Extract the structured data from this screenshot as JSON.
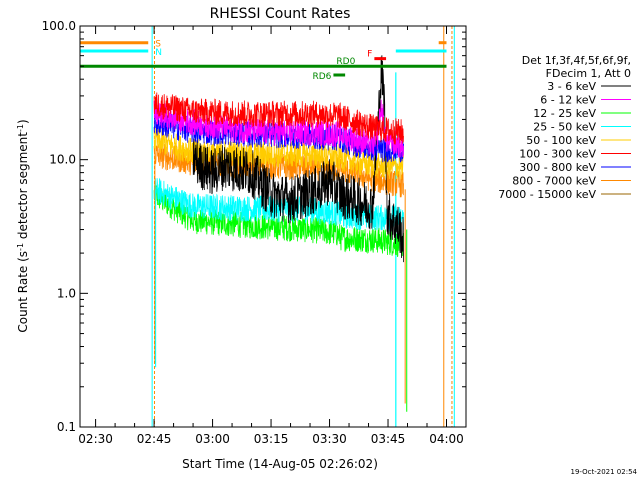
{
  "chart_data": {
    "type": "line",
    "title": "RHESSI Count Rates",
    "xlabel": "Start Time (14-Aug-05 02:26:02)",
    "ylabel_main": "Count Rate (s",
    "ylabel_sup1": "-1",
    "ylabel_mid": " detector segment",
    "ylabel_sup2": "-1",
    "ylabel_end": ")",
    "y_scale": "log",
    "ylim": [
      0.1,
      100
    ],
    "xlim_minutes": [
      -4,
      95
    ],
    "x_ticks": [
      {
        "label": "02:30",
        "minutes": 0
      },
      {
        "label": "02:45",
        "minutes": 15
      },
      {
        "label": "03:00",
        "minutes": 30
      },
      {
        "label": "03:15",
        "minutes": 45
      },
      {
        "label": "03:30",
        "minutes": 60
      },
      {
        "label": "03:45",
        "minutes": 75
      },
      {
        "label": "04:00",
        "minutes": 90
      }
    ],
    "y_ticks": [
      {
        "label": "100.0",
        "value": 100
      },
      {
        "label": "10.0",
        "value": 10
      },
      {
        "label": "1.0",
        "value": 1
      },
      {
        "label": "0.1",
        "value": 0.1
      }
    ],
    "legend": {
      "header1": "Det 1f,3f,4f,5f,6f,9f,",
      "header2": "FDecim 1, Att 0",
      "position": "right"
    },
    "series": [
      {
        "name": "3 - 6 keV",
        "color": "#000000",
        "start": 25,
        "knots": [
          [
            15,
            17
          ],
          [
            22,
            13
          ],
          [
            27,
            9
          ],
          [
            30,
            8
          ],
          [
            33,
            9
          ],
          [
            40,
            8
          ],
          [
            45,
            5.5
          ],
          [
            50,
            5
          ],
          [
            57,
            6
          ],
          [
            60,
            7
          ],
          [
            63,
            5.5
          ],
          [
            68,
            4.8
          ],
          [
            71,
            4.5
          ],
          [
            72.5,
            20
          ],
          [
            73.3,
            45
          ],
          [
            74,
            30
          ],
          [
            74.8,
            4
          ],
          [
            78,
            3
          ],
          [
            79,
            2.4
          ]
        ]
      },
      {
        "name": "6 - 12 keV",
        "color": "#ff00ff",
        "start": 15,
        "knots": [
          [
            15,
            22
          ],
          [
            25,
            19
          ],
          [
            35,
            17
          ],
          [
            45,
            16
          ],
          [
            55,
            16
          ],
          [
            63,
            15.5
          ],
          [
            67,
            14
          ],
          [
            72,
            13
          ],
          [
            73.3,
            25
          ],
          [
            74.5,
            14
          ],
          [
            79,
            12.5
          ]
        ]
      },
      {
        "name": "12 - 25 keV",
        "color": "#00ff00",
        "start": 15,
        "knots": [
          [
            15,
            5.5
          ],
          [
            25,
            3.5
          ],
          [
            40,
            3.2
          ],
          [
            55,
            3
          ],
          [
            62,
            2.8
          ],
          [
            63,
            2.6
          ],
          [
            72,
            2.5
          ],
          [
            79,
            2.3
          ]
        ]
      },
      {
        "name": "25 - 50 keV",
        "color": "#00ffff",
        "start": 15,
        "knots": [
          [
            15,
            6
          ],
          [
            25,
            4.5
          ],
          [
            40,
            4.3
          ],
          [
            55,
            4.2
          ],
          [
            62,
            4
          ],
          [
            63,
            3.8
          ],
          [
            72,
            3.7
          ],
          [
            79,
            3.6
          ]
        ]
      },
      {
        "name": "50 - 100 keV",
        "color": "#ffcc00",
        "start": 15,
        "knots": [
          [
            15,
            14
          ],
          [
            25,
            11.5
          ],
          [
            40,
            11
          ],
          [
            55,
            10.8
          ],
          [
            62,
            10.5
          ],
          [
            67,
            9.5
          ],
          [
            72,
            9
          ],
          [
            79,
            8.8
          ]
        ]
      },
      {
        "name": "100 - 300 keV",
        "color": "#ff0000",
        "start": 15,
        "knots": [
          [
            15,
            26
          ],
          [
            25,
            23
          ],
          [
            40,
            22
          ],
          [
            55,
            22
          ],
          [
            62,
            21.5
          ],
          [
            67,
            19
          ],
          [
            72,
            17
          ],
          [
            79,
            16
          ]
        ]
      },
      {
        "name": "300 - 800 keV",
        "color": "#0000ff",
        "start": 15,
        "knots": [
          [
            15,
            19
          ],
          [
            25,
            16.5
          ],
          [
            40,
            15.5
          ],
          [
            55,
            15
          ],
          [
            62,
            14.5
          ],
          [
            67,
            13
          ],
          [
            72,
            12
          ],
          [
            79,
            12
          ]
        ]
      },
      {
        "name": "800 - 7000 keV",
        "color": "#ff8800",
        "start": 15,
        "knots": [
          [
            15,
            11
          ],
          [
            25,
            9.5
          ],
          [
            40,
            9
          ],
          [
            55,
            8.8
          ],
          [
            62,
            8.5
          ],
          [
            67,
            7.8
          ],
          [
            72,
            7
          ],
          [
            79,
            6.5
          ]
        ]
      },
      {
        "name": "7000 - 15000 keV",
        "color": "#996600",
        "start": 15,
        "knots": []
      }
    ],
    "flags": [
      {
        "label": "S",
        "color": "#ff8800",
        "segments": [
          [
            -4,
            13.5
          ],
          [
            88,
            90
          ]
        ],
        "y": 75
      },
      {
        "label": "N",
        "color": "#00ffff",
        "segments": [
          [
            -4,
            13.5
          ],
          [
            77,
            90
          ]
        ],
        "y": 65
      },
      {
        "label": "",
        "color": "#008800",
        "segments": [
          [
            -4,
            90
          ]
        ],
        "y": 50
      },
      {
        "label": "RD6",
        "color": "#008800",
        "segments": [
          [
            61,
            64
          ]
        ],
        "y": 43
      },
      {
        "label": "RD0",
        "color": "#008800",
        "segments": [
          [
            61,
            61
          ]
        ],
        "y": 50
      },
      {
        "label": "F",
        "color": "#ff0000",
        "segments": [
          [
            71.5,
            74.5
          ]
        ],
        "y": 57
      }
    ]
  },
  "footer": {
    "timestamp": "19-Oct-2021 02:54"
  }
}
